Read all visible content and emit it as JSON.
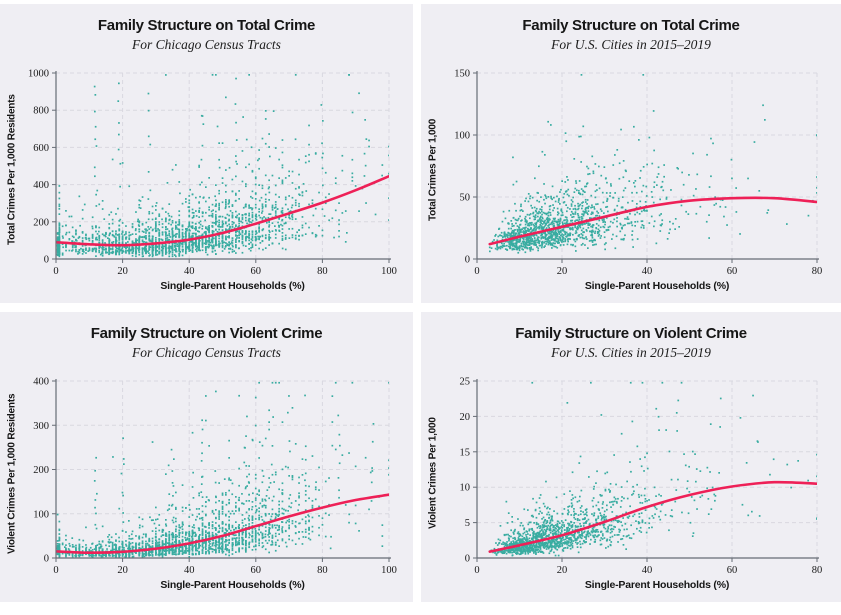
{
  "styles": {
    "panel_bg": "#efeef3",
    "point_color": "#2aa79b",
    "trend_color": "#ee2057",
    "grid_color": "#d9d8e0",
    "axis_color": "#666c75",
    "text_color": "#1a1a1a"
  },
  "chart_data": [
    {
      "type": "scatter",
      "title": "Family Structure on Total Crime",
      "subtitle": "For Chicago Census Tracts",
      "xlabel": "Single-Parent Households (%)",
      "ylabel": "Total Crimes Per 1,000 Residents",
      "xlim": [
        0,
        100
      ],
      "ylim": [
        0,
        1000
      ],
      "xticks": [
        0,
        20,
        40,
        60,
        80,
        100
      ],
      "yticks": [
        0,
        200,
        400,
        600,
        800,
        1000
      ],
      "grid": "dashed",
      "legend": "none",
      "trend": [
        [
          0,
          90
        ],
        [
          10,
          79
        ],
        [
          20,
          74
        ],
        [
          30,
          84
        ],
        [
          40,
          104
        ],
        [
          50,
          140
        ],
        [
          60,
          190
        ],
        [
          70,
          245
        ],
        [
          80,
          303
        ],
        [
          90,
          370
        ],
        [
          100,
          445
        ]
      ],
      "cloud": {
        "n": 2200,
        "x_type": "normal",
        "x_mean": 38,
        "x_sd": 21,
        "x_min": 0.5,
        "x_max": 100,
        "quantize_p": 0.75,
        "y_sigma": 0.58,
        "y_min": 14,
        "seed": 7
      },
      "outlier_columns": [
        [
          12,
          250,
          930,
          11
        ],
        [
          19,
          200,
          950,
          9
        ],
        [
          28,
          300,
          870,
          7
        ],
        [
          44,
          250,
          800,
          7
        ],
        [
          54,
          500,
          975,
          5
        ],
        [
          80,
          380,
          820,
          6
        ],
        [
          93,
          320,
          760,
          5
        ]
      ],
      "outlier_points": []
    },
    {
      "type": "scatter",
      "title": "Family Structure on Total Crime",
      "subtitle": "For U.S. Cities in 2015–2019",
      "xlabel": "Single-Parent Households (%)",
      "ylabel": "Total Crimes Per 1,000",
      "xlim": [
        0,
        80
      ],
      "ylim": [
        0,
        150
      ],
      "xticks": [
        0,
        20,
        40,
        60,
        80
      ],
      "yticks": [
        0,
        50,
        100,
        150
      ],
      "grid": "dashed",
      "legend": "none",
      "trend": [
        [
          3,
          12
        ],
        [
          10,
          18
        ],
        [
          20,
          26
        ],
        [
          30,
          34
        ],
        [
          40,
          42
        ],
        [
          50,
          47
        ],
        [
          60,
          49
        ],
        [
          70,
          49
        ],
        [
          80,
          46
        ]
      ],
      "cloud": {
        "n": 1400,
        "x_type": "lognormal",
        "x_median": 18,
        "x_sigma": 0.55,
        "x_min": 3,
        "x_max": 80,
        "quantize_p": 0,
        "y_sigma": 0.45,
        "y_min": 4,
        "seed": 11
      },
      "outlier_columns": [],
      "outlier_points": [
        [
          25,
          107
        ],
        [
          21,
          95
        ],
        [
          33,
          88
        ],
        [
          60,
          65
        ],
        [
          78,
          35
        ],
        [
          79,
          47
        ]
      ]
    },
    {
      "type": "scatter",
      "title": "Family Structure on Violent Crime",
      "subtitle": "For Chicago Census Tracts",
      "xlabel": "Single-Parent Households (%)",
      "ylabel": "Violent Crimes Per 1,000 Residents",
      "xlim": [
        0,
        100
      ],
      "ylim": [
        0,
        400
      ],
      "xticks": [
        0,
        20,
        40,
        60,
        80,
        100
      ],
      "yticks": [
        0,
        100,
        200,
        300,
        400
      ],
      "grid": "dashed",
      "legend": "none",
      "trend": [
        [
          0,
          15
        ],
        [
          10,
          12
        ],
        [
          20,
          14
        ],
        [
          30,
          21
        ],
        [
          40,
          33
        ],
        [
          50,
          50
        ],
        [
          60,
          72
        ],
        [
          70,
          94
        ],
        [
          80,
          114
        ],
        [
          90,
          131
        ],
        [
          100,
          143
        ]
      ],
      "cloud": {
        "n": 2200,
        "x_type": "normal",
        "x_mean": 38,
        "x_sd": 21,
        "x_min": 0.5,
        "x_max": 100,
        "quantize_p": 0.75,
        "y_sigma": 0.68,
        "y_min": 2.5,
        "seed": 21
      },
      "outlier_columns": [
        [
          12,
          60,
          220,
          8
        ],
        [
          20,
          80,
          260,
          8
        ],
        [
          35,
          90,
          240,
          7
        ],
        [
          44,
          100,
          300,
          8
        ],
        [
          57,
          120,
          310,
          7
        ],
        [
          70,
          150,
          360,
          6
        ],
        [
          85,
          130,
          330,
          6
        ],
        [
          95,
          120,
          300,
          5
        ]
      ],
      "outlier_points": []
    },
    {
      "type": "scatter",
      "title": "Family Structure on Violent Crime",
      "subtitle": "For U.S. Cities in 2015–2019",
      "xlabel": "Single-Parent Households (%)",
      "ylabel": "Violent Crimes Per 1,000",
      "xlim": [
        0,
        80
      ],
      "ylim": [
        0,
        25
      ],
      "xticks": [
        0,
        20,
        40,
        60,
        80
      ],
      "yticks": [
        0,
        5,
        10,
        15,
        20,
        25
      ],
      "grid": "dashed",
      "legend": "none",
      "trend": [
        [
          3,
          0.9
        ],
        [
          10,
          1.8
        ],
        [
          20,
          3.2
        ],
        [
          30,
          5.1
        ],
        [
          40,
          7.2
        ],
        [
          50,
          8.9
        ],
        [
          60,
          10.1
        ],
        [
          70,
          10.7
        ],
        [
          80,
          10.5
        ]
      ],
      "cloud": {
        "n": 1400,
        "x_type": "lognormal",
        "x_median": 18,
        "x_sigma": 0.55,
        "x_min": 3,
        "x_max": 80,
        "quantize_p": 0,
        "y_sigma": 0.5,
        "y_min": 0.35,
        "seed": 31
      },
      "outlier_columns": [],
      "outlier_points": [
        [
          47,
          20.5
        ],
        [
          62,
          19.8
        ],
        [
          55,
          18.9
        ],
        [
          66,
          16.5
        ],
        [
          40,
          14.8
        ],
        [
          73,
          13.2
        ]
      ]
    }
  ]
}
